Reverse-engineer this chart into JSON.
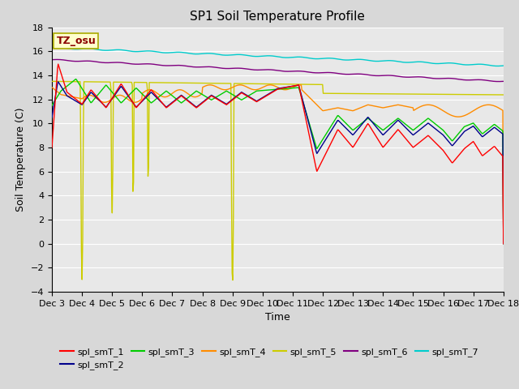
{
  "title": "SP1 Soil Temperature Profile",
  "xlabel": "Time",
  "ylabel": "Soil Temperature (C)",
  "ylim": [
    -4,
    18
  ],
  "yticks": [
    -4,
    -2,
    0,
    2,
    4,
    6,
    8,
    10,
    12,
    14,
    16,
    18
  ],
  "bg_color": "#d8d8d8",
  "plot_bg_color": "#e8e8e8",
  "grid_color": "#ffffff",
  "annotation_text": "TZ_osu",
  "annotation_color": "#8b0000",
  "annotation_bg": "#ffffcc",
  "annotation_edge": "#aaaa00",
  "series_colors": {
    "spl_smT_1": "#ff0000",
    "spl_smT_2": "#00008b",
    "spl_smT_3": "#00cc00",
    "spl_smT_4": "#ff8c00",
    "spl_smT_5": "#cccc00",
    "spl_smT_6": "#800080",
    "spl_smT_7": "#00cccc"
  },
  "xtick_labels": [
    "Dec 3",
    "Dec 4",
    "Dec 5",
    "Dec 6",
    "Dec 7",
    "Dec 8",
    "Dec 9",
    "Dec 10",
    "Dec 11",
    "Dec 12",
    "Dec 13",
    "Dec 14",
    "Dec 15",
    "Dec 16",
    "Dec 17",
    "Dec 18"
  ],
  "figsize": [
    6.4,
    4.8
  ],
  "dpi": 100
}
